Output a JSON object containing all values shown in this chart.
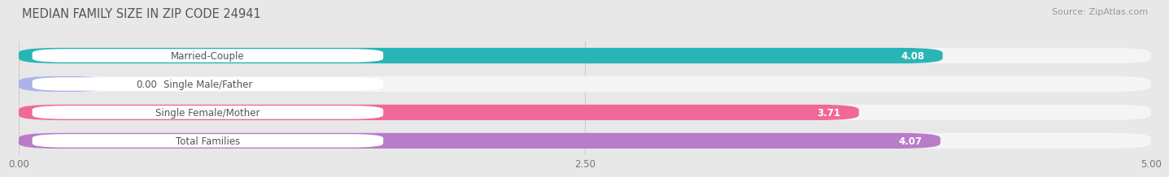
{
  "title": "MEDIAN FAMILY SIZE IN ZIP CODE 24941",
  "source": "Source: ZipAtlas.com",
  "categories": [
    "Married-Couple",
    "Single Male/Father",
    "Single Female/Mother",
    "Total Families"
  ],
  "values": [
    4.08,
    0.0,
    3.71,
    4.07
  ],
  "bar_colors": [
    "#29b5b5",
    "#aab4e8",
    "#f0689a",
    "#b87cc8"
  ],
  "xlim": [
    0,
    5.0
  ],
  "xticks": [
    0.0,
    2.5,
    5.0
  ],
  "xtick_labels": [
    "0.00",
    "2.50",
    "5.00"
  ],
  "bg_color": "#e8e8e8",
  "bar_bg_color": "#f5f5f5",
  "label_box_color": "#ffffff",
  "label_text_color": "#555555",
  "value_text_color": "#ffffff",
  "grid_color": "#cccccc",
  "title_color": "#555555",
  "source_color": "#999999",
  "label_fontsize": 8.5,
  "value_fontsize": 8.5,
  "title_fontsize": 10.5,
  "source_fontsize": 8.0,
  "bar_height": 0.55,
  "single_male_bar_width": 0.4
}
